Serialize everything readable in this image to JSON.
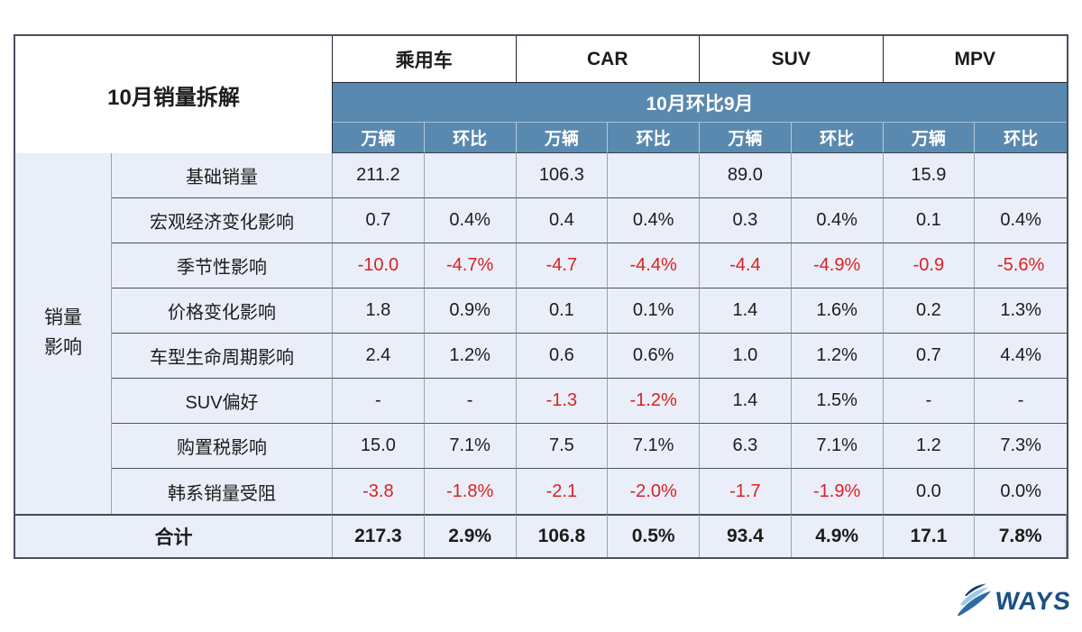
{
  "colors": {
    "header_blue": "#5a89af",
    "negative_red": "#d92222",
    "body_bg": "#eaeef9",
    "text": "#1c1c1c",
    "logo_blue": "#1b4f87"
  },
  "chart_data": {
    "type": "table",
    "title": "10月销量拆解",
    "column_groups": [
      "乘用车",
      "CAR",
      "SUV",
      "MPV"
    ],
    "band": "10月环比9月",
    "sub_headers": [
      "万辆",
      "环比",
      "万辆",
      "环比",
      "万辆",
      "环比",
      "万辆",
      "环比"
    ],
    "row_category": "销量影响",
    "row_category_lines": [
      "销量",
      "影响"
    ],
    "rows": [
      {
        "label": "基础销量",
        "values": [
          "211.2",
          "",
          "106.3",
          "",
          "89.0",
          "",
          "15.9",
          ""
        ]
      },
      {
        "label": "宏观经济变化影响",
        "values": [
          "0.7",
          "0.4%",
          "0.4",
          "0.4%",
          "0.3",
          "0.4%",
          "0.1",
          "0.4%"
        ]
      },
      {
        "label": "季节性影响",
        "values": [
          "-10.0",
          "-4.7%",
          "-4.7",
          "-4.4%",
          "-4.4",
          "-4.9%",
          "-0.9",
          "-5.6%"
        ]
      },
      {
        "label": "价格变化影响",
        "values": [
          "1.8",
          "0.9%",
          "0.1",
          "0.1%",
          "1.4",
          "1.6%",
          "0.2",
          "1.3%"
        ]
      },
      {
        "label": "车型生命周期影响",
        "values": [
          "2.4",
          "1.2%",
          "0.6",
          "0.6%",
          "1.0",
          "1.2%",
          "0.7",
          "4.4%"
        ]
      },
      {
        "label": "SUV偏好",
        "values": [
          "-",
          "-",
          "-1.3",
          "-1.2%",
          "1.4",
          "1.5%",
          "-",
          "-"
        ]
      },
      {
        "label": "购置税影响",
        "values": [
          "15.0",
          "7.1%",
          "7.5",
          "7.1%",
          "6.3",
          "7.1%",
          "1.2",
          "7.3%"
        ]
      },
      {
        "label": "韩系销量受阻",
        "values": [
          "-3.8",
          "-1.8%",
          "-2.1",
          "-2.0%",
          "-1.7",
          "-1.9%",
          "0.0",
          "0.0%"
        ]
      }
    ],
    "total": {
      "label": "合计",
      "values": [
        "217.3",
        "2.9%",
        "106.8",
        "0.5%",
        "93.4",
        "4.9%",
        "17.1",
        "7.8%"
      ]
    }
  },
  "footer": {
    "logo_text": "WAYS"
  }
}
